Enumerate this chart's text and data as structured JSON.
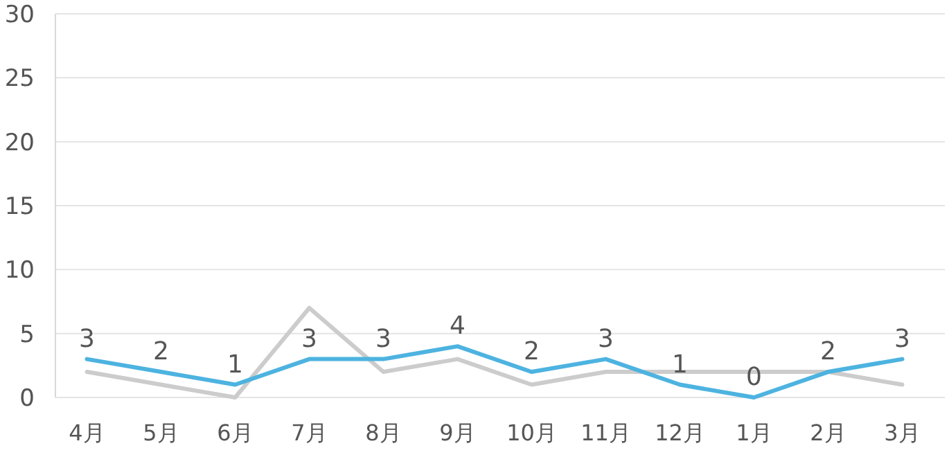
{
  "chart_data": {
    "type": "line",
    "categories": [
      "4月",
      "5月",
      "6月",
      "7月",
      "8月",
      "9月",
      "10月",
      "11月",
      "12月",
      "1月",
      "2月",
      "3月"
    ],
    "series": [
      {
        "color": "#cccccc",
        "values": [
          2,
          1,
          0,
          7,
          2,
          3,
          1,
          2,
          2,
          2,
          2,
          1
        ]
      },
      {
        "color": "#4db3e0",
        "values": [
          3,
          2,
          1,
          3,
          3,
          4,
          2,
          3,
          1,
          0,
          2,
          3
        ],
        "value_labels": [
          "3",
          "2",
          "1",
          "3",
          "3",
          "4",
          "2",
          "3",
          "1",
          "0",
          "2",
          "3"
        ]
      }
    ],
    "ylim": [
      0,
      30
    ],
    "yticks": [
      0,
      5,
      10,
      15,
      20,
      25,
      30
    ],
    "grid": "y",
    "marker": "none",
    "line_style": "solid"
  }
}
